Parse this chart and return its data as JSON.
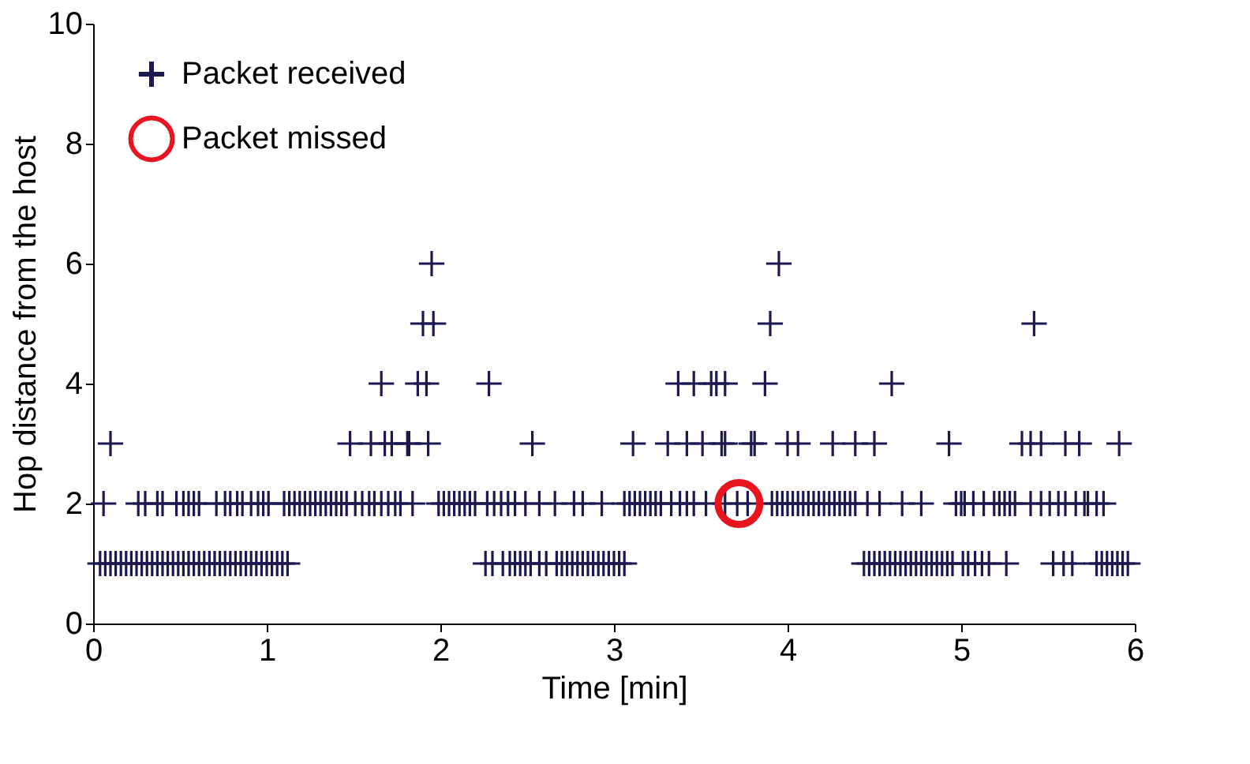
{
  "chart_data": {
    "type": "scatter",
    "xlabel": "Time [min]",
    "ylabel": "Hop distance from the host",
    "xlim": [
      0,
      6
    ],
    "xticks": [
      0,
      1,
      2,
      3,
      4,
      5,
      6
    ],
    "ylim": [
      0,
      10
    ],
    "yticks": [
      0,
      2,
      4,
      6,
      8,
      10
    ],
    "grid": false,
    "legend": "top left",
    "series": [
      {
        "name": "Packet received",
        "color": "#1a1a50",
        "marker": "cross",
        "x": [
          0.04,
          0.07,
          0.1,
          0.13,
          0.16,
          0.19,
          0.22,
          0.25,
          0.28,
          0.31,
          0.34,
          0.37,
          0.4,
          0.43,
          0.46,
          0.49,
          0.52,
          0.55,
          0.58,
          0.61,
          0.64,
          0.67,
          0.7,
          0.73,
          0.76,
          0.79,
          0.82,
          0.85,
          0.88,
          0.91,
          0.94,
          0.97,
          1.0,
          1.03,
          1.06,
          1.09,
          1.12,
          2.26,
          2.3,
          2.36,
          2.4,
          2.43,
          2.46,
          2.49,
          2.52,
          2.57,
          2.61,
          2.67,
          2.7,
          2.73,
          2.76,
          2.79,
          2.82,
          2.85,
          2.88,
          2.91,
          2.94,
          2.97,
          3.0,
          3.03,
          3.06,
          4.44,
          4.47,
          4.5,
          4.53,
          4.56,
          4.59,
          4.62,
          4.65,
          4.68,
          4.71,
          4.74,
          4.77,
          4.8,
          4.83,
          4.86,
          4.89,
          4.92,
          4.95,
          5.01,
          5.04,
          5.08,
          5.12,
          5.16,
          5.26,
          5.53,
          5.59,
          5.64,
          5.78,
          5.81,
          5.84,
          5.87,
          5.9,
          5.93,
          5.96,
          0.06,
          0.26,
          0.3,
          0.37,
          0.4,
          0.48,
          0.52,
          0.55,
          0.58,
          0.61,
          0.71,
          0.76,
          0.79,
          0.83,
          0.86,
          0.91,
          0.95,
          0.98,
          1.01,
          1.1,
          1.13,
          1.16,
          1.19,
          1.22,
          1.25,
          1.28,
          1.31,
          1.34,
          1.37,
          1.4,
          1.43,
          1.46,
          1.51,
          1.55,
          1.59,
          1.62,
          1.66,
          1.7,
          1.74,
          1.77,
          1.84,
          1.99,
          2.02,
          2.05,
          2.08,
          2.11,
          2.14,
          2.17,
          2.2,
          2.27,
          2.31,
          2.35,
          2.39,
          2.43,
          2.49,
          2.57,
          2.66,
          2.77,
          2.82,
          2.93,
          3.06,
          3.09,
          3.12,
          3.15,
          3.18,
          3.21,
          3.24,
          3.27,
          3.33,
          3.38,
          3.42,
          3.46,
          3.53,
          3.64,
          3.71,
          3.77,
          3.91,
          3.94,
          3.97,
          4.0,
          4.03,
          4.06,
          4.09,
          4.12,
          4.15,
          4.18,
          4.21,
          4.24,
          4.27,
          4.3,
          4.33,
          4.36,
          4.39,
          4.46,
          4.53,
          4.66,
          4.77,
          4.97,
          5.0,
          5.02,
          5.07,
          5.13,
          5.19,
          5.22,
          5.25,
          5.28,
          5.31,
          5.4,
          5.46,
          5.51,
          5.56,
          5.6,
          5.66,
          5.71,
          5.73,
          5.78,
          5.82,
          0.1,
          1.48,
          1.6,
          1.68,
          1.72,
          1.81,
          1.82,
          1.93,
          2.53,
          3.11,
          3.31,
          3.42,
          3.51,
          3.62,
          3.64,
          3.79,
          3.81,
          4.0,
          4.06,
          4.26,
          4.39,
          4.5,
          4.93,
          5.35,
          5.4,
          5.46,
          5.6,
          5.68,
          5.91,
          1.66,
          1.87,
          1.92,
          2.28,
          3.37,
          3.46,
          3.56,
          3.59,
          3.64,
          3.87,
          4.6,
          1.9,
          1.96,
          3.9,
          5.42,
          1.95,
          3.95
        ],
        "values": [
          1,
          1,
          1,
          1,
          1,
          1,
          1,
          1,
          1,
          1,
          1,
          1,
          1,
          1,
          1,
          1,
          1,
          1,
          1,
          1,
          1,
          1,
          1,
          1,
          1,
          1,
          1,
          1,
          1,
          1,
          1,
          1,
          1,
          1,
          1,
          1,
          1,
          1,
          1,
          1,
          1,
          1,
          1,
          1,
          1,
          1,
          1,
          1,
          1,
          1,
          1,
          1,
          1,
          1,
          1,
          1,
          1,
          1,
          1,
          1,
          1,
          1,
          1,
          1,
          1,
          1,
          1,
          1,
          1,
          1,
          1,
          1,
          1,
          1,
          1,
          1,
          1,
          1,
          1,
          1,
          1,
          1,
          1,
          1,
          1,
          1,
          1,
          1,
          1,
          1,
          1,
          1,
          1,
          1,
          1,
          2,
          2,
          2,
          2,
          2,
          2,
          2,
          2,
          2,
          2,
          2,
          2,
          2,
          2,
          2,
          2,
          2,
          2,
          2,
          2,
          2,
          2,
          2,
          2,
          2,
          2,
          2,
          2,
          2,
          2,
          2,
          2,
          2,
          2,
          2,
          2,
          2,
          2,
          2,
          2,
          2,
          2,
          2,
          2,
          2,
          2,
          2,
          2,
          2,
          2,
          2,
          2,
          2,
          2,
          2,
          2,
          2,
          2,
          2,
          2,
          2,
          2,
          2,
          2,
          2,
          2,
          2,
          2,
          2,
          2,
          2,
          2,
          2,
          2,
          2,
          2,
          2,
          2,
          2,
          2,
          2,
          2,
          2,
          2,
          2,
          2,
          2,
          2,
          2,
          2,
          2,
          2,
          2,
          2,
          2,
          2,
          2,
          2,
          2,
          2,
          2,
          2,
          2,
          2,
          2,
          2,
          2,
          2,
          2,
          2,
          2,
          2,
          2,
          2,
          2,
          2,
          2,
          3,
          3,
          3,
          3,
          3,
          3,
          3,
          3,
          3,
          3,
          3,
          3,
          3,
          3,
          3,
          3,
          3,
          3,
          3,
          3,
          3,
          3,
          3,
          3,
          3,
          3,
          3,
          3,
          3,
          4,
          4,
          4,
          4,
          4,
          4,
          4,
          4,
          4,
          4,
          4,
          5,
          5,
          5,
          5,
          6,
          6
        ]
      },
      {
        "name": "Packet missed",
        "color": "#e8141e",
        "marker": "circle",
        "x": [
          3.72
        ],
        "values": [
          2
        ]
      }
    ]
  }
}
